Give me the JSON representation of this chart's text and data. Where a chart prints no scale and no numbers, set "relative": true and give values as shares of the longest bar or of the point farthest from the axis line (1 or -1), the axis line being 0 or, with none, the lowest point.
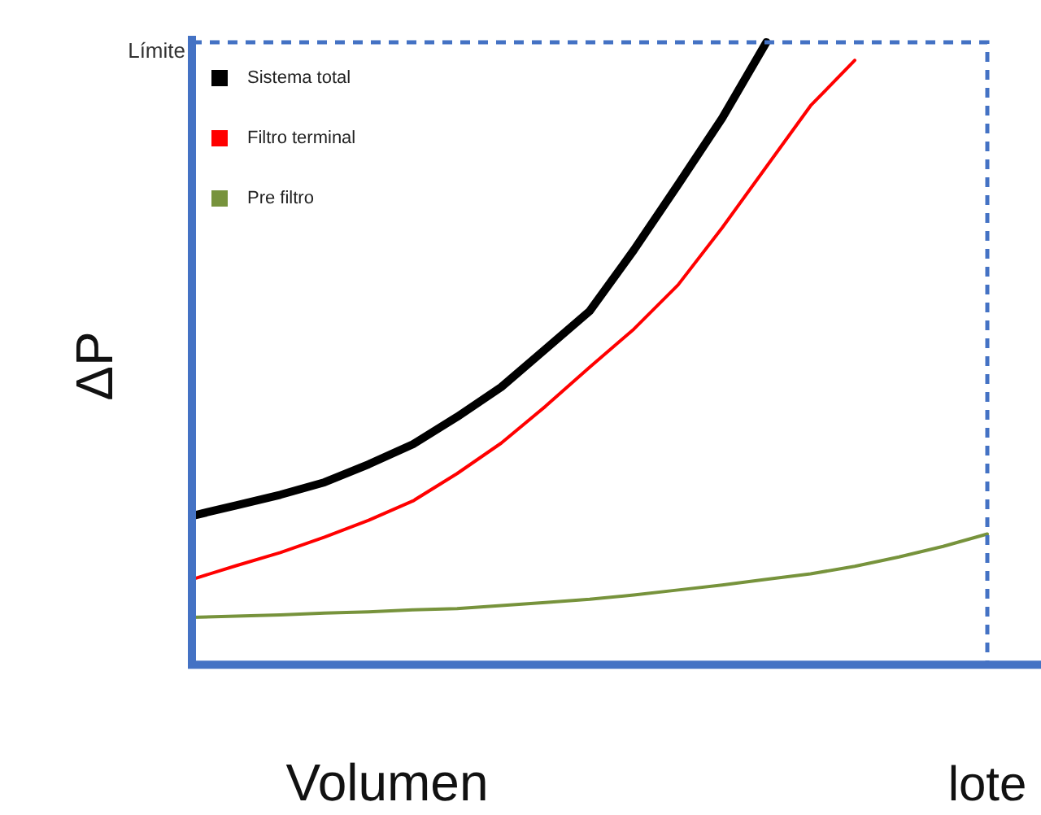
{
  "chart_data": {
    "type": "line",
    "relative": true,
    "xlabel": "Volumen",
    "ylabel": "ΔP",
    "legend": "top left",
    "grid": false,
    "marker": "none",
    "line_style": "solid",
    "categories": [
      null,
      null,
      null,
      null,
      null,
      null,
      null,
      null,
      null,
      null,
      null,
      null,
      null,
      null,
      null,
      null,
      null,
      null,
      null
    ],
    "annotations": [
      "lote"
    ],
    "series": [
      {
        "name": "Sistema total",
        "color": "#000000",
        "values": [
          0.239,
          0.256,
          0.273,
          0.293,
          0.322,
          0.354,
          0.398,
          0.446,
          0.507,
          0.568,
          0.666,
          0.771,
          0.878,
          1.0,
          null,
          null,
          null,
          null,
          null
        ]
      },
      {
        "name": "Filtro terminal",
        "color": "#ff0000",
        "values": [
          0.137,
          0.159,
          0.18,
          0.205,
          0.232,
          0.263,
          0.307,
          0.356,
          0.415,
          0.478,
          0.539,
          0.61,
          0.702,
          0.8,
          0.898,
          0.971,
          null,
          null,
          null
        ]
      },
      {
        "name": "Pre filtro",
        "color": "#77933c",
        "values": [
          0.076,
          0.078,
          0.08,
          0.083,
          0.085,
          0.088,
          0.09,
          0.095,
          0.1,
          0.105,
          0.112,
          0.12,
          0.128,
          0.137,
          0.146,
          0.158,
          0.173,
          0.19,
          0.21
        ]
      }
    ],
    "ref_lines": [
      {
        "axis": "y",
        "value": 1,
        "label": "Límite",
        "color": "#4472c4",
        "line_style": "dashed"
      }
    ]
  }
}
